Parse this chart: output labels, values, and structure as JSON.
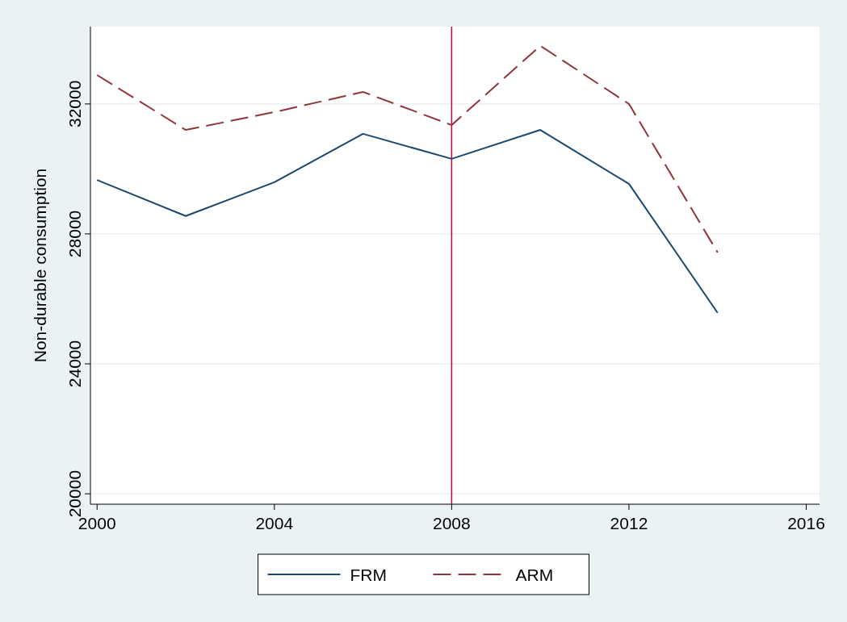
{
  "chart_data": {
    "type": "line",
    "ylabel": "Non-durable consumption",
    "x": [
      2000,
      2002,
      2004,
      2006,
      2008,
      2010,
      2012,
      2014
    ],
    "series": [
      {
        "name": "FRM",
        "color": "#1a476f",
        "line_style": "solid",
        "values": [
          29660,
          28550,
          29590,
          31080,
          30310,
          31200,
          29540,
          25570
        ]
      },
      {
        "name": "ARM",
        "color": "#90353b",
        "line_style": "dashed",
        "values": [
          32890,
          31200,
          31750,
          32370,
          31350,
          33790,
          32000,
          27430
        ]
      }
    ],
    "xlim": [
      1999.85,
      2016.3
    ],
    "xticks": [
      2000,
      2004,
      2008,
      2012,
      2016
    ],
    "ylim": [
      19680,
      34380
    ],
    "yticks": [
      20000,
      24000,
      28000,
      32000
    ],
    "grid": "y",
    "legend": "bottom",
    "marker": "none",
    "ref_lines": [
      {
        "axis": "x",
        "value": 2008,
        "color": "#c10534",
        "line_style": "solid"
      }
    ]
  }
}
